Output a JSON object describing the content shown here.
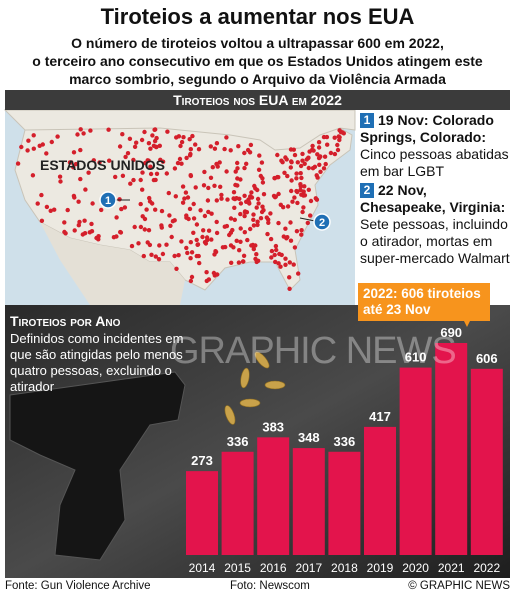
{
  "header": {
    "title": "Tiroteios a aumentar nos EUA",
    "subtitle": [
      "O número de tiroteios voltou a ultrapassar 600 em 2022,",
      "o terceiro ano consecutivo em que os Estados Unidos atingem este",
      "marco sombrio, segundo o Arquivo da Violência Armada"
    ]
  },
  "map": {
    "banner": "Tiroteios nos EUA em 2022",
    "label": "ESTADOS UNIDOS"
  },
  "events": [
    {
      "number": "1",
      "heading": "19 Nov: Colorado Springs, Colorado:",
      "text": "Cinco pessoas abatidas em bar LGBT"
    },
    {
      "number": "2",
      "heading": "22 Nov, Chesapeake, Virginia:",
      "text": "Sete pessoas, incluindo o atirador, mortas em super-mercado Walmart"
    }
  ],
  "callout": "2022: 606 tiroteios até 23 Nov",
  "watermark": "GRAPHIC NEWS",
  "chart_data": {
    "type": "bar",
    "title": "Tiroteios por Ano",
    "description": "Definidos como incidentes em que são atingidas pelo menos quatro pessoas, excluindo o atirador",
    "categories": [
      "2014",
      "2015",
      "2016",
      "2017",
      "2018",
      "2019",
      "2020",
      "2021",
      "2022"
    ],
    "values": [
      273,
      336,
      383,
      348,
      336,
      417,
      610,
      690,
      606
    ],
    "color": "#e3144c"
  },
  "footer": {
    "source": "Fonte: Gun Violence Archive",
    "photo": "Foto: Newscom",
    "copyright": "© GRAPHIC NEWS"
  }
}
